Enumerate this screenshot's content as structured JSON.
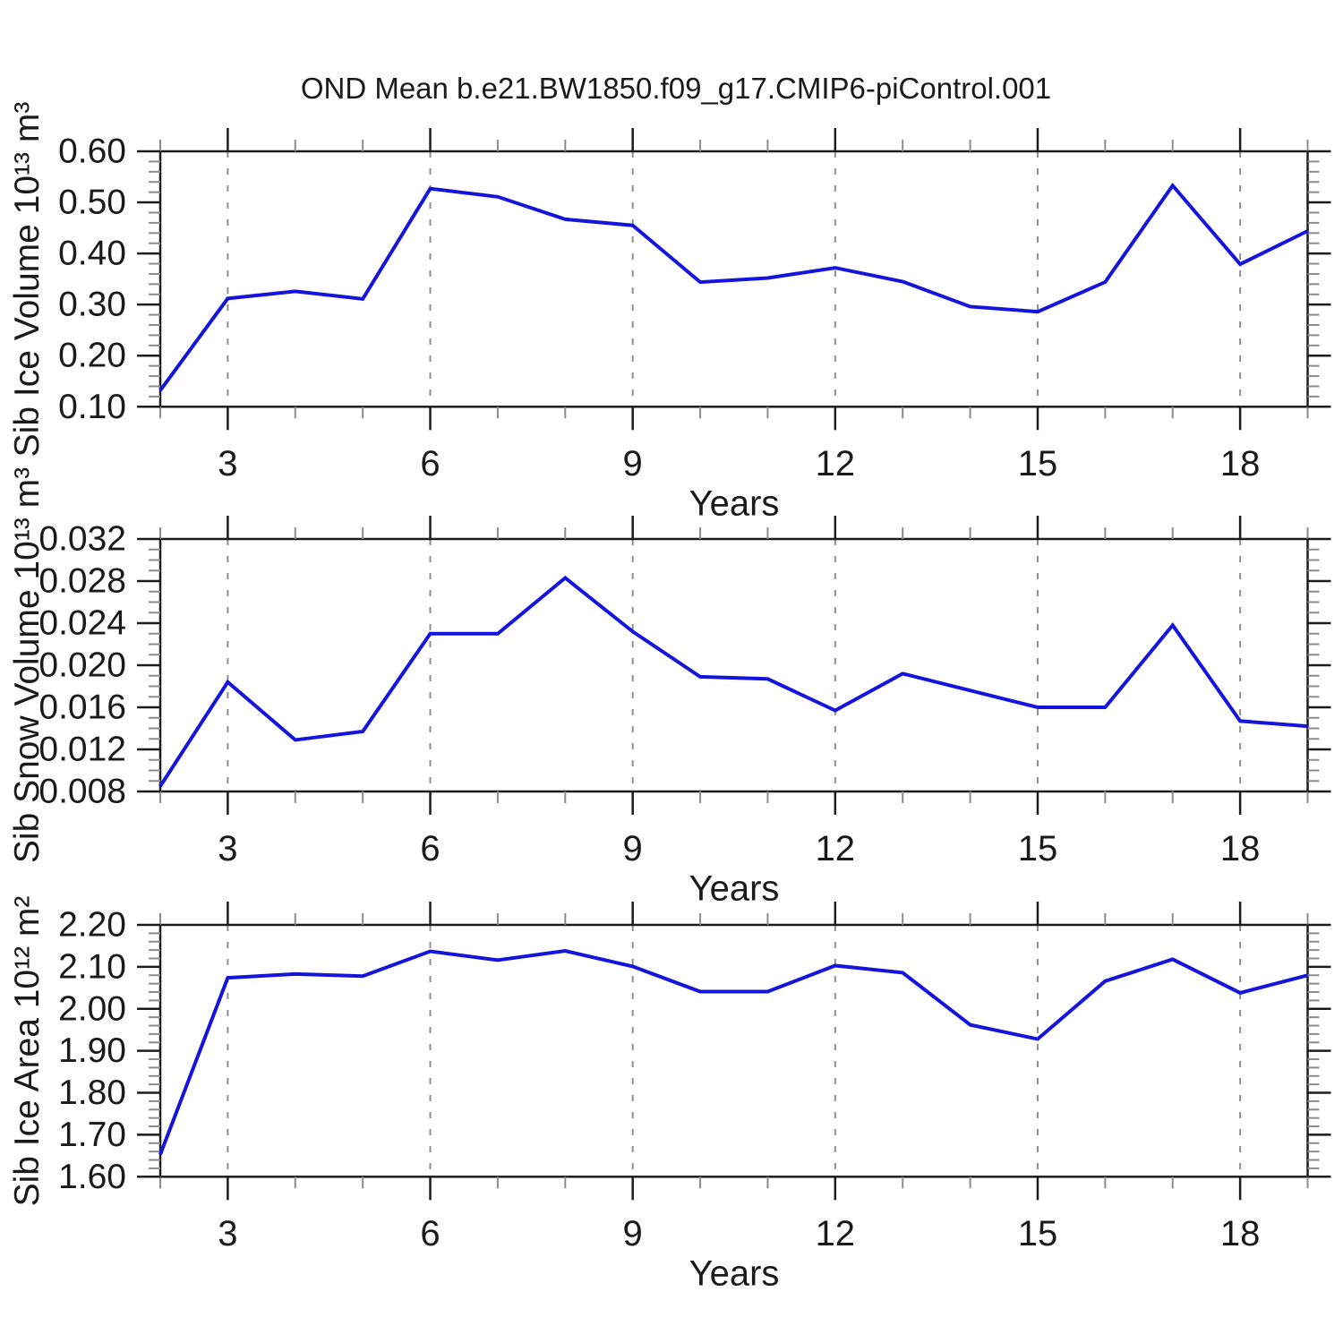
{
  "header": {
    "title": "OND Mean b.e21.BW1850.f09_g17.CMIP6-piControl.001"
  },
  "style": {
    "line_color": "#1414dc",
    "frame_color": "#1c1c1c",
    "major_tick_color": "#1c1c1c",
    "minor_tick_color": "#8c8c8c",
    "grid_color": "#909090",
    "text_color": "#1a1a1a"
  },
  "chart_data": [
    {
      "type": "line",
      "ylabel": "Sib Ice Volume 10¹³ m³",
      "xlabel": "Years",
      "x_range": [
        2,
        19
      ],
      "x_major_ticks": [
        3,
        6,
        9,
        12,
        15,
        18
      ],
      "x_minor_step": 1,
      "ylim": [
        0.1,
        0.6
      ],
      "yticks": [
        0.1,
        0.2,
        0.3,
        0.4,
        0.5,
        0.6
      ],
      "ytick_labels": [
        "0.10",
        "0.20",
        "0.30",
        "0.40",
        "0.50",
        "0.60"
      ],
      "y_minor_step": 0.02,
      "grid": "x-major-dashed",
      "x": [
        2,
        3,
        4,
        5,
        6,
        7,
        8,
        9,
        10,
        11,
        12,
        13,
        14,
        15,
        16,
        17,
        18,
        19
      ],
      "values": [
        0.132,
        0.312,
        0.326,
        0.311,
        0.527,
        0.511,
        0.467,
        0.455,
        0.344,
        0.352,
        0.372,
        0.345,
        0.296,
        0.286,
        0.344,
        0.533,
        0.379,
        0.444
      ]
    },
    {
      "type": "line",
      "ylabel": "Sib Snow Volume 10¹³ m³",
      "xlabel": "Years",
      "x_range": [
        2,
        19
      ],
      "x_major_ticks": [
        3,
        6,
        9,
        12,
        15,
        18
      ],
      "x_minor_step": 1,
      "ylim": [
        0.008,
        0.032
      ],
      "yticks": [
        0.008,
        0.012,
        0.016,
        0.02,
        0.024,
        0.028,
        0.032
      ],
      "ytick_labels": [
        "0.008",
        "0.012",
        "0.016",
        "0.020",
        "0.024",
        "0.028",
        "0.032"
      ],
      "y_minor_step": 0.001,
      "grid": "x-major-dashed",
      "x": [
        2,
        3,
        4,
        5,
        6,
        7,
        8,
        9,
        10,
        11,
        12,
        13,
        14,
        15,
        16,
        17,
        18,
        19
      ],
      "values": [
        0.0085,
        0.0184,
        0.0129,
        0.0137,
        0.023,
        0.023,
        0.0283,
        0.0232,
        0.0189,
        0.0187,
        0.0157,
        0.0192,
        0.0176,
        0.016,
        0.016,
        0.0238,
        0.0147,
        0.0142
      ]
    },
    {
      "type": "line",
      "ylabel": "Sib Ice Area 10¹² m²",
      "xlabel": "Years",
      "x_range": [
        2,
        19
      ],
      "x_major_ticks": [
        3,
        6,
        9,
        12,
        15,
        18
      ],
      "x_minor_step": 1,
      "ylim": [
        1.6,
        2.2
      ],
      "yticks": [
        1.6,
        1.7,
        1.8,
        1.9,
        2.0,
        2.1,
        2.2
      ],
      "ytick_labels": [
        "1.60",
        "1.70",
        "1.80",
        "1.90",
        "2.00",
        "2.10",
        "2.20"
      ],
      "y_minor_step": 0.02,
      "grid": "x-major-dashed",
      "x": [
        2,
        3,
        4,
        5,
        6,
        7,
        8,
        9,
        10,
        11,
        12,
        13,
        14,
        15,
        16,
        17,
        18,
        19
      ],
      "values": [
        1.653,
        2.074,
        2.083,
        2.078,
        2.137,
        2.116,
        2.138,
        2.101,
        2.041,
        2.041,
        2.103,
        2.086,
        1.962,
        1.928,
        2.066,
        2.118,
        2.038,
        2.08
      ]
    }
  ]
}
